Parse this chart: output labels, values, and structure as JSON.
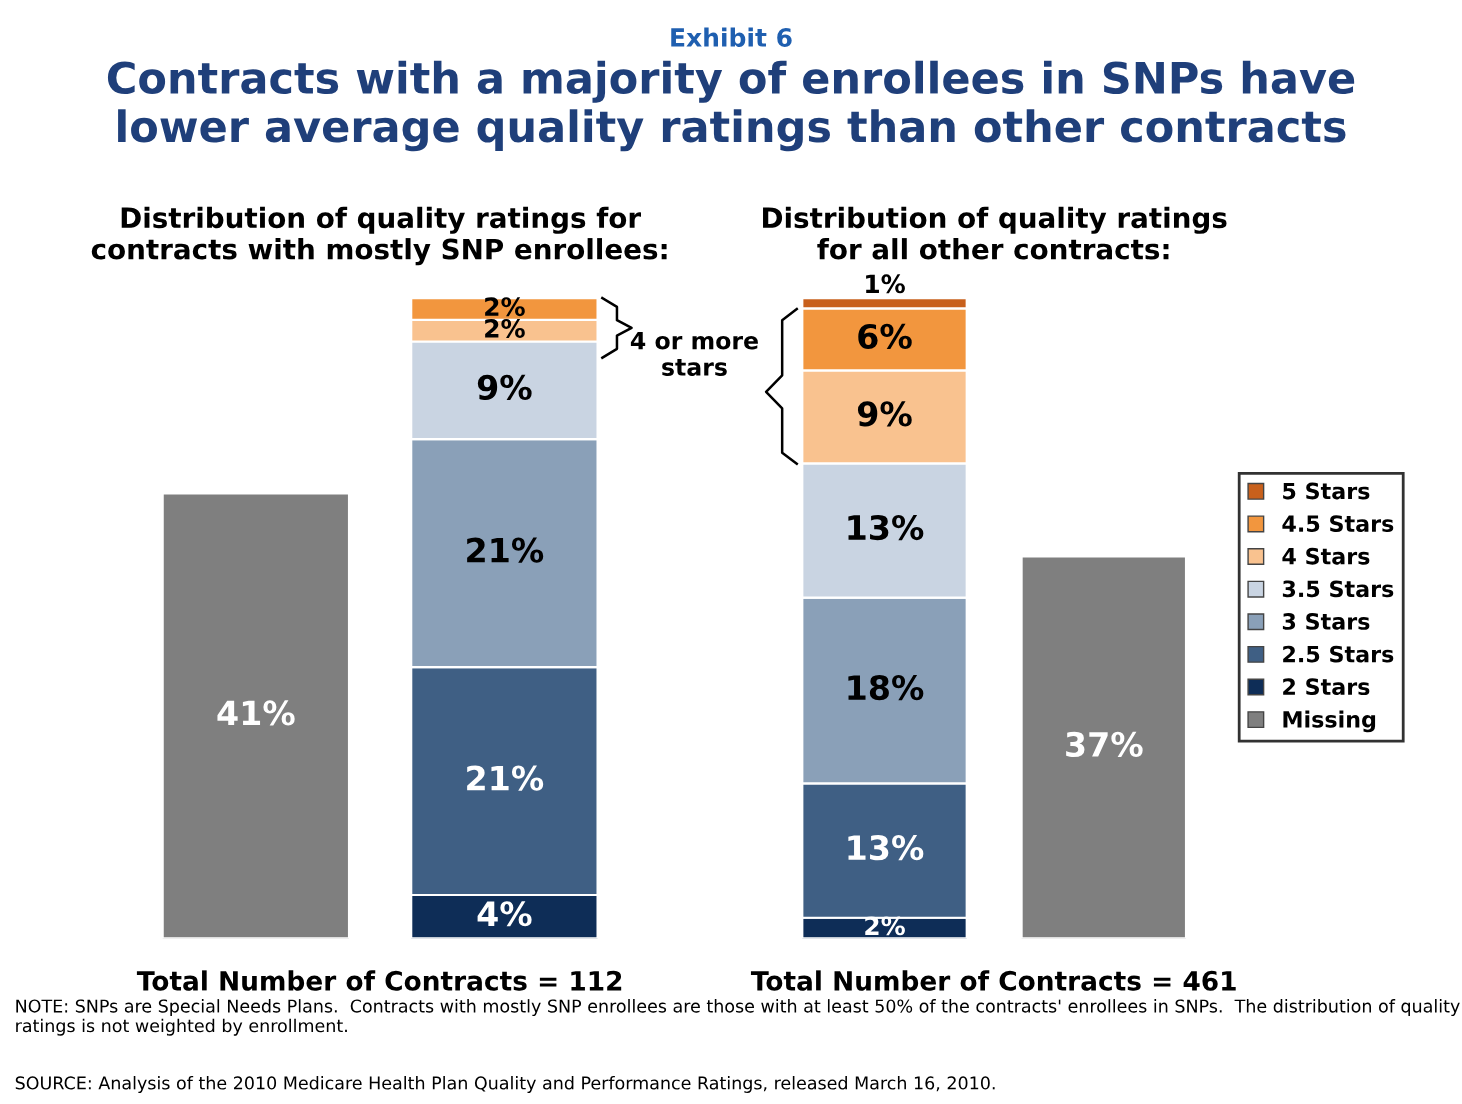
{
  "chart_data": [
    {
      "type": "bar",
      "stacked": true,
      "title": "Distribution of quality ratings for\ncontracts with mostly SNP enrollees:",
      "xlabel": "Total Number of Contracts = 112",
      "categories": [
        null,
        null
      ],
      "ylim": [
        0,
        59
      ],
      "grid": false,
      "annotations": [
        "Exhibit 6",
        "Contracts with a majority of enrollees in SNPs have\nlower average quality ratings than other contracts",
        "4 or more\nstars",
        "NOTE: SNPs are Special Needs Plans.  Contracts with mostly SNP enrollees are those with at least 50% of the contracts' enrollees in SNPs.  The distribution of quality ratings is not weighted by enrollment.",
        "SOURCE: Analysis of the 2010 Medicare Health Plan Quality and Performance Ratings, released March 16, 2010."
      ],
      "series": [
        {
          "color": "#7f7f7f",
          "values": [
            41,
            null
          ],
          "value_labels": [
            "41%",
            null
          ]
        },
        {
          "color": "#0e2d57",
          "values": [
            null,
            4
          ],
          "value_labels": [
            null,
            "4%"
          ]
        },
        {
          "color": "#3f5f84",
          "values": [
            null,
            21
          ],
          "value_labels": [
            null,
            "21%"
          ]
        },
        {
          "color": "#8aa0b8",
          "values": [
            null,
            21
          ],
          "value_labels": [
            null,
            "21%"
          ]
        },
        {
          "color": "#c9d4e2",
          "values": [
            null,
            9
          ],
          "value_labels": [
            null,
            "9%"
          ]
        },
        {
          "color": "#f9c28f",
          "values": [
            null,
            2
          ],
          "value_labels": [
            null,
            "2%"
          ]
        },
        {
          "color": "#f2963e",
          "values": [
            null,
            2
          ],
          "value_labels": [
            null,
            "2%"
          ]
        }
      ]
    },
    {
      "type": "bar",
      "stacked": true,
      "title": "Distribution of quality ratings\nfor all other contracts:",
      "xlabel": "Total Number of Contracts = 461",
      "categories": [
        null,
        null
      ],
      "ylim": [
        0,
        62
      ],
      "grid": false,
      "legend": "right",
      "series": [
        {
          "name": "Missing",
          "color": "#7f7f7f",
          "values": [
            null,
            37
          ],
          "value_labels": [
            null,
            "37%"
          ]
        },
        {
          "name": "2 Stars",
          "color": "#0e2d57",
          "values": [
            2,
            null
          ],
          "value_labels": [
            "2%",
            null
          ]
        },
        {
          "name": "2.5 Stars",
          "color": "#3f5f84",
          "values": [
            13,
            null
          ],
          "value_labels": [
            "13%",
            null
          ]
        },
        {
          "name": "3 Stars",
          "color": "#8aa0b8",
          "values": [
            18,
            null
          ],
          "value_labels": [
            "18%",
            null
          ]
        },
        {
          "name": "3.5 Stars",
          "color": "#c9d4e2",
          "values": [
            13,
            null
          ],
          "value_labels": [
            "13%",
            null
          ]
        },
        {
          "name": "4 Stars",
          "color": "#f9c28f",
          "values": [
            9,
            null
          ],
          "value_labels": [
            "9%",
            null
          ]
        },
        {
          "name": "4.5 Stars",
          "color": "#f2963e",
          "values": [
            6,
            null
          ],
          "value_labels": [
            "6%",
            null
          ]
        },
        {
          "name": "5 Stars",
          "color": "#c8601c",
          "values": [
            1,
            null
          ],
          "value_labels": [
            "1%",
            null
          ]
        }
      ]
    }
  ]
}
